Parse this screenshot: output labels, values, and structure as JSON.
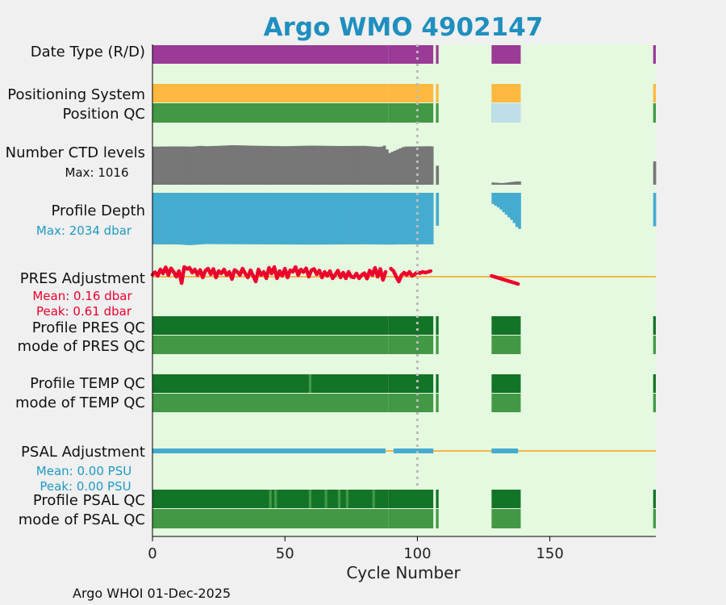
{
  "chart_data": {
    "type": "status-timeline",
    "title": "Argo WMO 4902147",
    "xlabel": "Cycle Number",
    "xlim": [
      0,
      190
    ],
    "xticks": [
      0,
      50,
      100,
      150
    ],
    "xtick_labels": [
      "0",
      "50",
      "100",
      "150"
    ],
    "reference_cycle": 100,
    "footer": "Argo WHOI 01-Dec-2025",
    "colors": {
      "title": "#1f8fbf",
      "background": "#e4f9df",
      "page": "#f0f0f0",
      "delayed": "#9b3a97",
      "position_system": "#ffb940",
      "position_qc_good": "#439845",
      "position_qc_missing": "#bedfea",
      "ctd_levels": "#777777",
      "profile_depth": "#45acd0",
      "pres_adjustment": "#ec002c",
      "zero_line": "#f6b647",
      "qc_dark": "#137327",
      "qc_light": "#439845",
      "psal_adjustment": "#45acd0",
      "pres_stats": "#ec002c",
      "psal_stats": "#2199c4"
    },
    "cycle_segments": [
      [
        0,
        89
      ],
      [
        89,
        106
      ],
      [
        107,
        108
      ],
      [
        128,
        139
      ],
      [
        189,
        190
      ]
    ],
    "rows": [
      {
        "label": "Date Type (R/D)"
      },
      {
        "label": "Positioning System"
      },
      {
        "label": "Position QC"
      },
      {
        "label": "Number CTD levels",
        "sub": "Max: 1016"
      },
      {
        "label": "Profile Depth",
        "sub": "Max: 2034 dbar"
      },
      {
        "label": "PRES Adjustment",
        "sub1": "Mean: 0.16 dbar",
        "sub2": "Peak: 0.61 dbar"
      },
      {
        "label": "Profile PRES QC"
      },
      {
        "label": "mode of PRES QC"
      },
      {
        "label": "Profile TEMP QC"
      },
      {
        "label": "mode of TEMP QC"
      },
      {
        "label": "PSAL Adjustment",
        "sub1": "Mean: 0.00 PSU",
        "sub2": "Peak: 0.00 PSU"
      },
      {
        "label": "Profile PSAL QC"
      },
      {
        "label": "mode of PSAL QC"
      }
    ],
    "position_qc_missing_segment": [
      128,
      139
    ],
    "ctd_levels_max": 1016,
    "ctd_levels_profile": [
      [
        0,
        980
      ],
      [
        10,
        985
      ],
      [
        15,
        980
      ],
      [
        18,
        1000
      ],
      [
        20,
        990
      ],
      [
        25,
        1000
      ],
      [
        30,
        1016
      ],
      [
        40,
        1000
      ],
      [
        50,
        990
      ],
      [
        60,
        1005
      ],
      [
        70,
        995
      ],
      [
        80,
        1000
      ],
      [
        86,
        970
      ],
      [
        88,
        1016
      ],
      [
        89,
        800
      ],
      [
        95,
        980
      ],
      [
        105,
        990
      ],
      [
        106,
        980
      ],
      [
        107,
        500
      ],
      [
        128,
        60
      ],
      [
        132,
        40
      ],
      [
        138,
        90
      ],
      [
        139,
        80
      ],
      [
        189,
        600
      ],
      [
        190,
        600
      ]
    ],
    "profile_depth_max": 2034,
    "profile_depth_values": [
      [
        0,
        2000
      ],
      [
        10,
        2005
      ],
      [
        14,
        2034
      ],
      [
        17,
        2010
      ],
      [
        20,
        1990
      ],
      [
        40,
        2000
      ],
      [
        60,
        2010
      ],
      [
        80,
        2000
      ],
      [
        89,
        2010
      ],
      [
        95,
        2000
      ],
      [
        106,
        2000
      ],
      [
        107,
        1300
      ],
      [
        128,
        400
      ],
      [
        131,
        600
      ],
      [
        134,
        900
      ],
      [
        136,
        1100
      ],
      [
        138,
        1400
      ],
      [
        139,
        1400
      ],
      [
        189,
        1300
      ],
      [
        190,
        1300
      ]
    ],
    "pres_adjustment_range": [
      -1.0,
      1.0
    ],
    "pres_adjustment_series": [
      [
        [
          0,
          0.12
        ],
        [
          1,
          0.28
        ],
        [
          2,
          0.05
        ],
        [
          3,
          0.45
        ],
        [
          4,
          0.2
        ],
        [
          5,
          0.58
        ],
        [
          6,
          0.1
        ],
        [
          7,
          0.52
        ],
        [
          8,
          0.3
        ],
        [
          9,
          0.0
        ],
        [
          10,
          0.35
        ],
        [
          11,
          -0.4
        ],
        [
          12,
          0.6
        ],
        [
          13,
          0.48
        ],
        [
          14,
          0.55
        ],
        [
          15,
          0.25
        ],
        [
          16,
          0.45
        ],
        [
          17,
          0.1
        ],
        [
          18,
          0.42
        ],
        [
          19,
          -0.05
        ],
        [
          20,
          0.38
        ],
        [
          21,
          0.5
        ],
        [
          22,
          0.15
        ],
        [
          23,
          0.48
        ],
        [
          24,
          -0.05
        ],
        [
          25,
          0.35
        ],
        [
          26,
          0.2
        ],
        [
          27,
          0.45
        ],
        [
          28,
          0.1
        ],
        [
          29,
          0.3
        ],
        [
          30,
          -0.15
        ],
        [
          31,
          0.42
        ],
        [
          32,
          0.3
        ],
        [
          33,
          0.1
        ],
        [
          34,
          0.5
        ],
        [
          35,
          0.2
        ],
        [
          36,
          -0.05
        ],
        [
          37,
          0.4
        ],
        [
          38,
          0.05
        ],
        [
          39,
          -0.3
        ],
        [
          40,
          0.45
        ],
        [
          41,
          0.1
        ],
        [
          42,
          0.3
        ],
        [
          43,
          -0.1
        ],
        [
          44,
          0.55
        ],
        [
          45,
          0.2
        ],
        [
          46,
          0.6
        ],
        [
          47,
          -0.1
        ],
        [
          48,
          0.35
        ],
        [
          49,
          0.05
        ],
        [
          50,
          0.5
        ],
        [
          51,
          -0.05
        ],
        [
          52,
          0.4
        ],
        [
          53,
          0.3
        ],
        [
          54,
          0.6
        ],
        [
          55,
          0.1
        ],
        [
          56,
          0.45
        ],
        [
          57,
          0.28
        ],
        [
          58,
          0.52
        ],
        [
          59,
          0.0
        ],
        [
          60,
          0.4
        ],
        [
          61,
          0.48
        ],
        [
          62,
          0.15
        ],
        [
          63,
          0.38
        ],
        [
          64,
          -0.05
        ],
        [
          65,
          0.3
        ],
        [
          66,
          0.05
        ],
        [
          67,
          0.35
        ],
        [
          68,
          -0.1
        ],
        [
          69,
          0.12
        ],
        [
          70,
          0.38
        ],
        [
          71,
          -0.05
        ],
        [
          72,
          0.25
        ],
        [
          73,
          -0.1
        ],
        [
          74,
          0.3
        ],
        [
          75,
          0.0
        ],
        [
          76,
          -0.05
        ],
        [
          77,
          0.2
        ],
        [
          78,
          -0.1
        ],
        [
          79,
          0.1
        ],
        [
          80,
          0.22
        ],
        [
          81,
          -0.12
        ],
        [
          82,
          0.38
        ],
        [
          83,
          0.1
        ],
        [
          84,
          0.55
        ],
        [
          85,
          0.0
        ],
        [
          86,
          0.48
        ],
        [
          87,
          -0.2
        ],
        [
          88,
          0.3
        ]
      ],
      [
        [
          90,
          0.5
        ],
        [
          91,
          0.35
        ],
        [
          92,
          0.0
        ],
        [
          93,
          -0.3
        ],
        [
          94,
          0.1
        ],
        [
          95,
          0.25
        ],
        [
          96,
          0.1
        ],
        [
          97,
          0.3
        ],
        [
          98,
          0.05
        ],
        [
          99,
          0.15
        ],
        [
          100,
          0.28
        ],
        [
          101,
          0.22
        ],
        [
          102,
          0.3
        ],
        [
          103,
          0.25
        ],
        [
          104,
          0.3
        ],
        [
          105,
          0.35
        ]
      ],
      [
        [
          128,
          0.05
        ],
        [
          138,
          -0.45
        ]
      ]
    ],
    "pres_zero_line_range": [
      0,
      190
    ],
    "psal_adjustment_segments": [
      [
        0,
        88
      ],
      [
        91,
        106
      ],
      [
        128,
        138
      ]
    ],
    "psal_zero_line_range": [
      0,
      190
    ],
    "qc_rows": {
      "profile_temp_light": [
        [
          59,
          60
        ]
      ],
      "profile_psal_light": [
        [
          44,
          45
        ],
        [
          46,
          47
        ],
        [
          59,
          60
        ],
        [
          65,
          66
        ],
        [
          70,
          71
        ],
        [
          73,
          74
        ],
        [
          83,
          84
        ]
      ]
    }
  }
}
